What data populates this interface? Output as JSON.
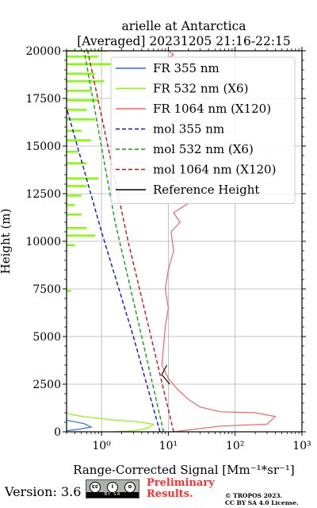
{
  "chart_data": {
    "type": "line",
    "title": "arielle at Antarctica",
    "subtitle": "[Averaged] 20231205 21:16-22:15",
    "xlabel": "Range-Corrected Signal [Mm⁻¹*sr⁻¹]",
    "ylabel": "Height (m)",
    "xscale": "log",
    "xlim": [
      0.3,
      1000
    ],
    "ylim": [
      0,
      20000
    ],
    "x_ticks": [
      {
        "value": 1,
        "label": "10⁰"
      },
      {
        "value": 10,
        "label": "10¹"
      },
      {
        "value": 100,
        "label": "10²"
      },
      {
        "value": 1000,
        "label": "10³"
      }
    ],
    "y_ticks": [
      "0",
      "2500",
      "5000",
      "7500",
      "10000",
      "12500",
      "15000",
      "17500",
      "20000"
    ],
    "y_tick_values": [
      0,
      2500,
      5000,
      7500,
      10000,
      12500,
      15000,
      17500,
      20000
    ],
    "grid": true,
    "legend_position": "top-right",
    "series": [
      {
        "name": "FR 355 nm",
        "color": "#1f77e8",
        "style": "solid",
        "x": [
          0.3,
          0.45,
          0.7,
          0.55,
          0.35,
          0.3
        ],
        "y": [
          60,
          130,
          250,
          430,
          560,
          620
        ]
      },
      {
        "name": "FR 532 nm (X6)",
        "color": "#7fff00",
        "style": "solid",
        "x": [
          1.5,
          3,
          5,
          6,
          3,
          1.5,
          0.6,
          0.35,
          0.3
        ],
        "y": [
          0,
          50,
          200,
          400,
          550,
          620,
          780,
          900,
          1000
        ]
      },
      {
        "name": "FR 1064 nm (X120)",
        "color": "#f46464",
        "style": "solid",
        "x": [
          12,
          60,
          300,
          400,
          200,
          60,
          30,
          20,
          14,
          10,
          8,
          8.5,
          9,
          10,
          9,
          10,
          12,
          11,
          15,
          12,
          20,
          25,
          15,
          10,
          8,
          10,
          12,
          9,
          10,
          15,
          25,
          40,
          15,
          10,
          8,
          9,
          12,
          10
        ],
        "y": [
          0,
          300,
          400,
          800,
          1000,
          1050,
          1300,
          1700,
          2200,
          2800,
          3500,
          4500,
          5500,
          6500,
          7500,
          8500,
          9500,
          10500,
          11000,
          11500,
          12000,
          12500,
          13000,
          13500,
          14000,
          14500,
          15000,
          15500,
          16000,
          16500,
          17000,
          17500,
          18000,
          18500,
          19000,
          19500,
          19800,
          20000
        ]
      },
      {
        "name": "mol 355 nm",
        "color": "#1010d0",
        "style": "dashed",
        "x": [
          7.5,
          3,
          1,
          0.3
        ],
        "y": [
          0,
          5000,
          10500,
          17000
        ]
      },
      {
        "name": "mol 532 nm (X6)",
        "color": "#10a010",
        "style": "dashed",
        "x": [
          8.5,
          4,
          1.6,
          0.55
        ],
        "y": [
          0,
          5000,
          11000,
          20000
        ]
      },
      {
        "name": "mol 1064 nm (X120)",
        "color": "#d01010",
        "style": "dashed",
        "x": [
          12,
          5.5,
          2.5,
          0.62
        ],
        "y": [
          0,
          5000,
          10000,
          20000
        ]
      },
      {
        "name": "Reference Height",
        "color": "#000000",
        "style": "solid",
        "x": [
          10.5,
          8,
          9.5
        ],
        "y": [
          2500,
          3000,
          3500
        ]
      }
    ],
    "green_noise_bars": [
      {
        "y": 20000,
        "x": 1.2
      },
      {
        "y": 19700,
        "x": 0.9
      },
      {
        "y": 19300,
        "x": 1.5
      },
      {
        "y": 18800,
        "x": 0.8
      },
      {
        "y": 18400,
        "x": 1.1
      },
      {
        "y": 17900,
        "x": 0.7
      },
      {
        "y": 17400,
        "x": 0.9
      },
      {
        "y": 16900,
        "x": 0.6
      },
      {
        "y": 16400,
        "x": 0.8
      },
      {
        "y": 15800,
        "x": 0.5
      },
      {
        "y": 15300,
        "x": 0.7
      },
      {
        "y": 14700,
        "x": 0.45
      },
      {
        "y": 14100,
        "x": 0.6
      },
      {
        "y": 13300,
        "x": 0.9
      },
      {
        "y": 12900,
        "x": 0.6
      },
      {
        "y": 12400,
        "x": 0.5
      },
      {
        "y": 11900,
        "x": 0.4
      },
      {
        "y": 11400,
        "x": 0.5
      },
      {
        "y": 10700,
        "x": 0.6
      },
      {
        "y": 10300,
        "x": 0.8
      },
      {
        "y": 9800,
        "x": 0.4
      },
      {
        "y": 7400,
        "x": 0.35
      }
    ]
  },
  "footer": {
    "version": "Version: 3.6",
    "badge": "BY  SA",
    "preliminary_line1": "Preliminary",
    "preliminary_line2": "Results.",
    "copyright_line1": "© TROPOS 2023.",
    "copyright_line2": "CC BY SA 4.0 License."
  }
}
